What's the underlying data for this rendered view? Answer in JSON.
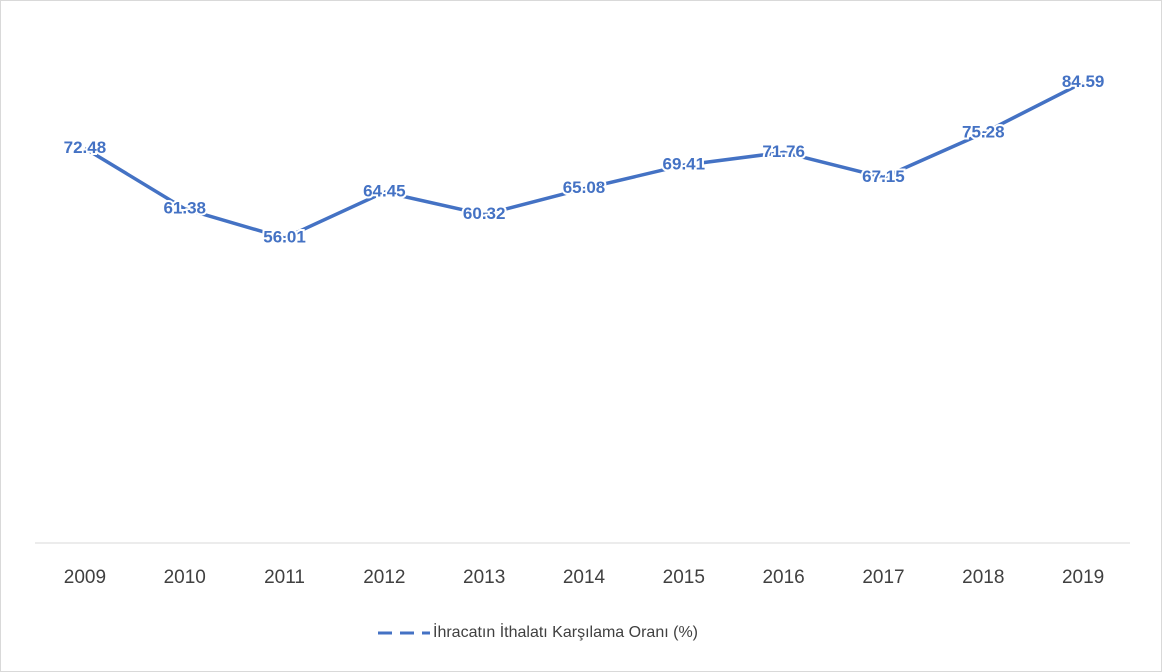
{
  "chart_data": {
    "type": "line",
    "categories": [
      "2009",
      "2010",
      "2011",
      "2012",
      "2013",
      "2014",
      "2015",
      "2016",
      "2017",
      "2018",
      "2019"
    ],
    "series": [
      {
        "name": "İhracatın İthalatı Karşılama Oranı (%)",
        "color": "#4472c4",
        "values": [
          72.48,
          61.38,
          56.01,
          64.45,
          60.32,
          65.08,
          69.41,
          71.76,
          67.15,
          75.28,
          84.59
        ]
      }
    ],
    "ylim": [
      0,
      90
    ],
    "legend": "bottom"
  }
}
